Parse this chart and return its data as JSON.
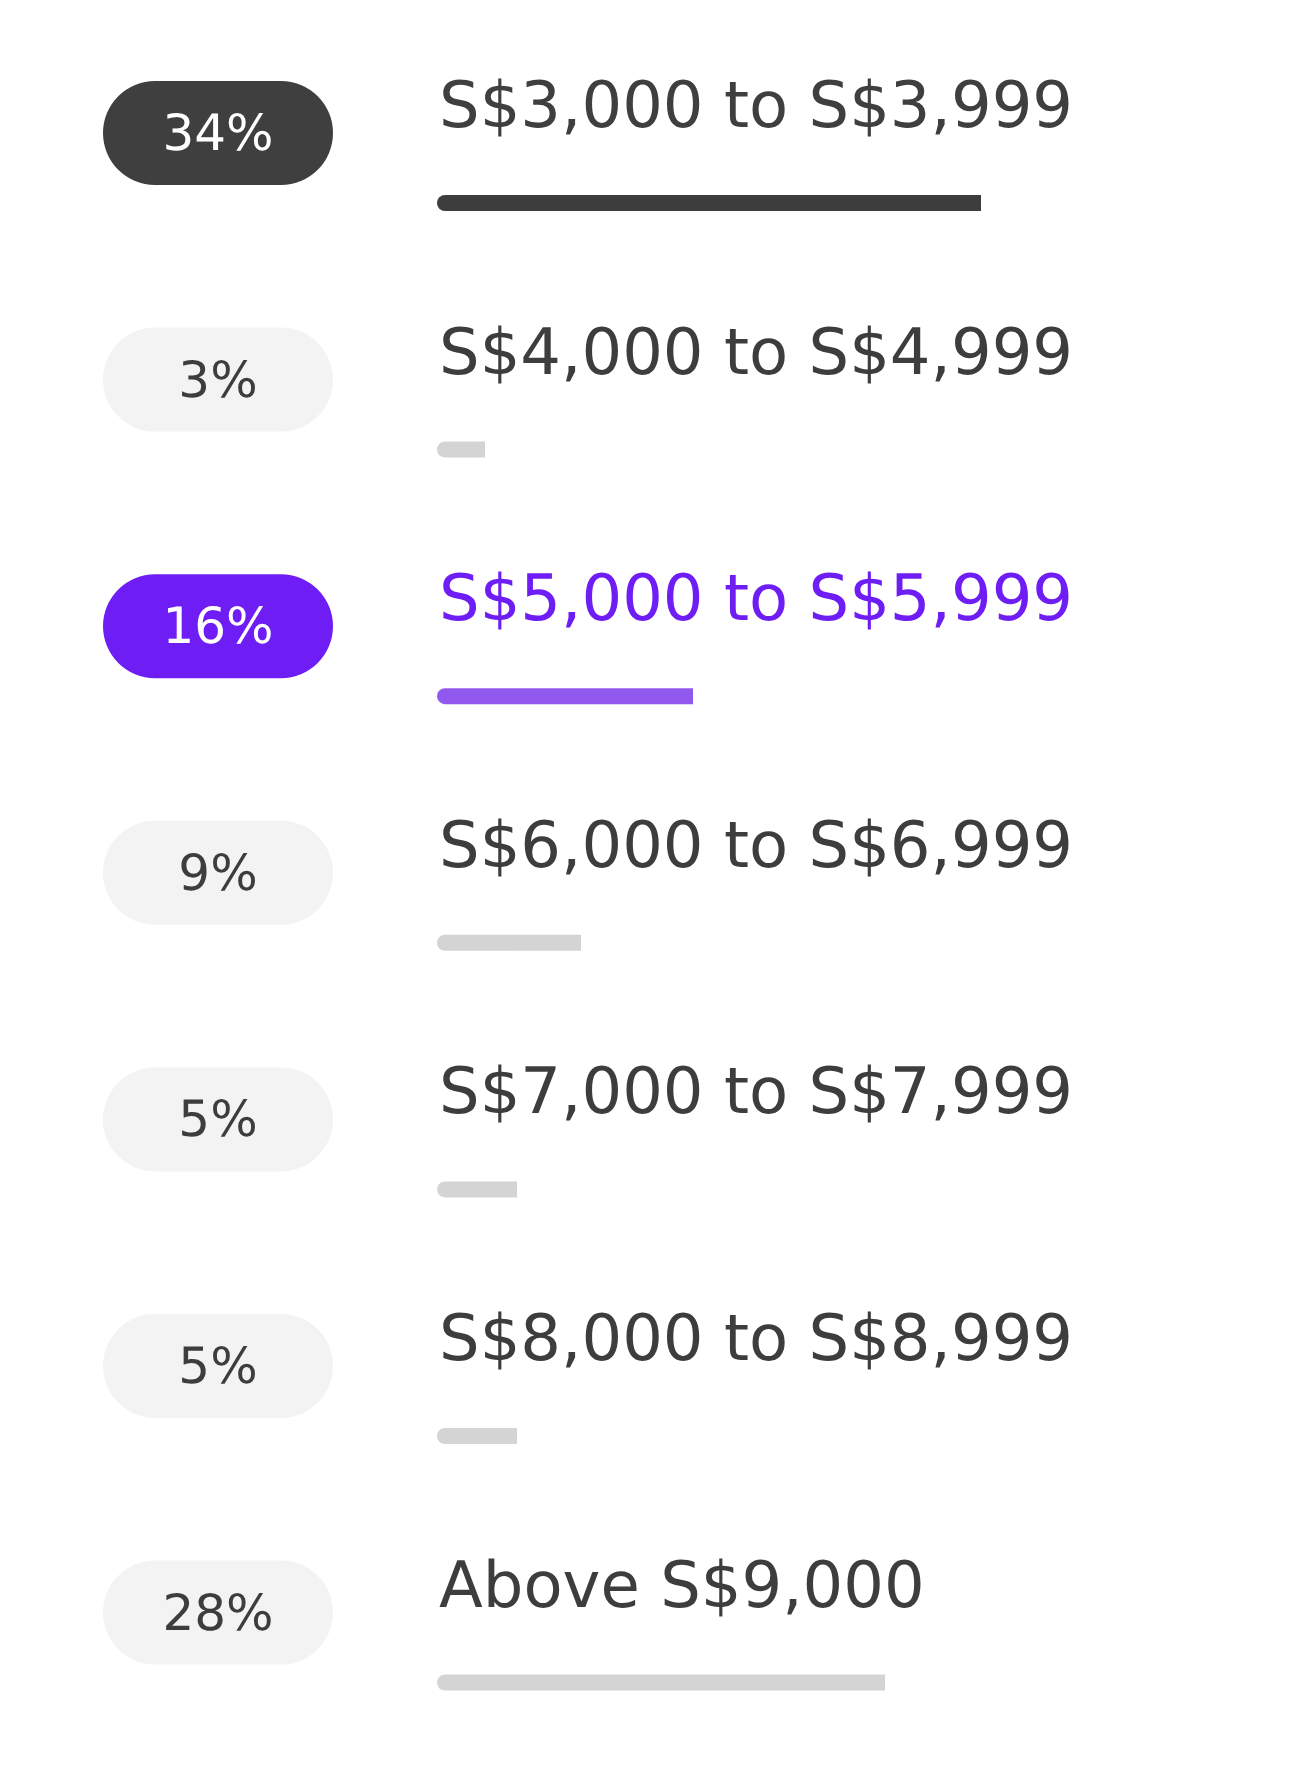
{
  "chart_data": {
    "type": "bar",
    "orientation": "horizontal",
    "categories": [
      "S$3,000 to S$3,999",
      "S$4,000 to S$4,999",
      "S$5,000 to S$5,999",
      "S$6,000 to S$6,999",
      "S$7,000 to S$7,999",
      "S$8,000 to S$8,999",
      "Above S$9,000"
    ],
    "values": [
      34,
      3,
      16,
      9,
      5,
      5,
      28
    ],
    "colors": [
      "#3d3d3d",
      "#d4d4d4",
      "#9158ee",
      "#d4d4d4",
      "#d4d4d4",
      "#d4d4d4",
      "#d4d4d4"
    ],
    "value_labels": [
      "34%",
      "3%",
      "16%",
      "9%",
      "5%",
      "5%",
      "28%"
    ],
    "tick_labels": false
  }
}
